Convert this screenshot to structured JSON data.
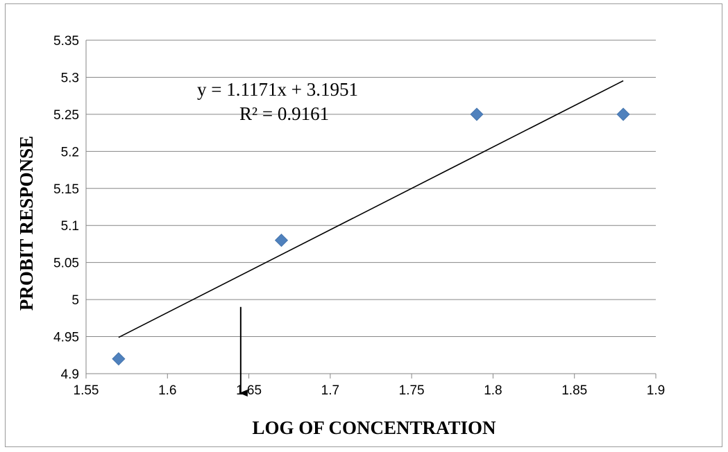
{
  "chart_data": {
    "type": "scatter",
    "xlabel": "LOG OF CONCENTRATION",
    "ylabel": "PROBIT RESPONSE",
    "xlim": [
      1.55,
      1.9
    ],
    "ylim": [
      4.9,
      5.35
    ],
    "x_ticks": [
      "1.55",
      "1.6",
      "1.65",
      "1.7",
      "1.75",
      "1.8",
      "1.85",
      "1.9"
    ],
    "y_ticks": [
      "4.9",
      "4.95",
      "5",
      "5.05",
      "5.1",
      "5.15",
      "5.2",
      "5.25",
      "5.3",
      "5.35"
    ],
    "grid": "horizontal",
    "series": [
      {
        "marker": "diamond",
        "color": "#4f81bd",
        "points": [
          {
            "x": 1.57,
            "y": 4.92
          },
          {
            "x": 1.67,
            "y": 5.08
          },
          {
            "x": 1.79,
            "y": 5.25
          },
          {
            "x": 1.88,
            "y": 5.25
          }
        ]
      }
    ],
    "trendline": {
      "type": "linear",
      "slope": 1.1171,
      "intercept": 3.1951,
      "x_range": [
        1.57,
        1.88
      ],
      "equation": "y = 1.1171x + 3.1951",
      "r_squared": "R² = 0.9161"
    },
    "annotation_arrow": {
      "x": 1.645,
      "y_from": 4.99,
      "y_to": 4.9
    }
  }
}
